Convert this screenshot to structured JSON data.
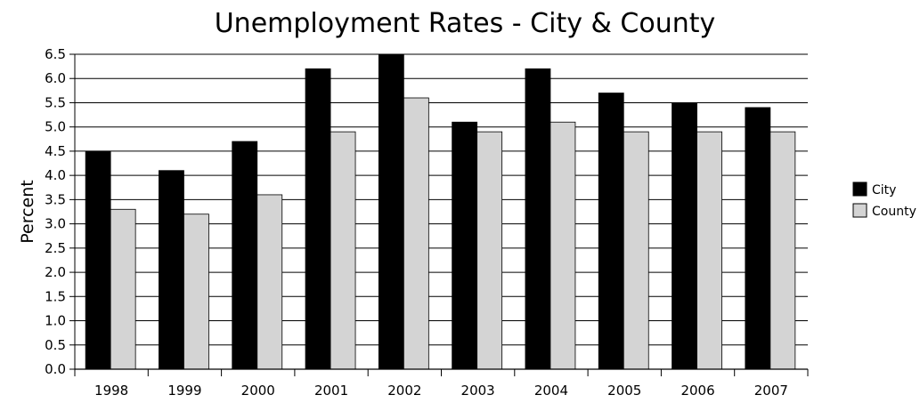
{
  "chart_data": {
    "type": "bar",
    "title": "Unemployment Rates - City & County",
    "xlabel": "",
    "ylabel": "Percent",
    "categories": [
      "1998",
      "1999",
      "2000",
      "2001",
      "2002",
      "2003",
      "2004",
      "2005",
      "2006",
      "2007"
    ],
    "series": [
      {
        "name": "City",
        "color": "#000000",
        "values": [
          4.5,
          4.1,
          4.7,
          6.2,
          6.5,
          5.1,
          6.2,
          5.7,
          5.5,
          5.4
        ]
      },
      {
        "name": "County",
        "color": "#d4d4d4",
        "values": [
          3.3,
          3.2,
          3.6,
          4.9,
          5.6,
          4.9,
          5.1,
          4.9,
          4.9,
          4.9
        ]
      }
    ],
    "ylim": [
      0,
      6.5
    ],
    "yticks": [
      "0.0",
      "0.5",
      "1.0",
      "1.5",
      "2.0",
      "2.5",
      "3.0",
      "3.5",
      "4.0",
      "4.5",
      "5.0",
      "5.5",
      "6.0",
      "6.5"
    ],
    "grid": true,
    "legend_position": "right"
  }
}
